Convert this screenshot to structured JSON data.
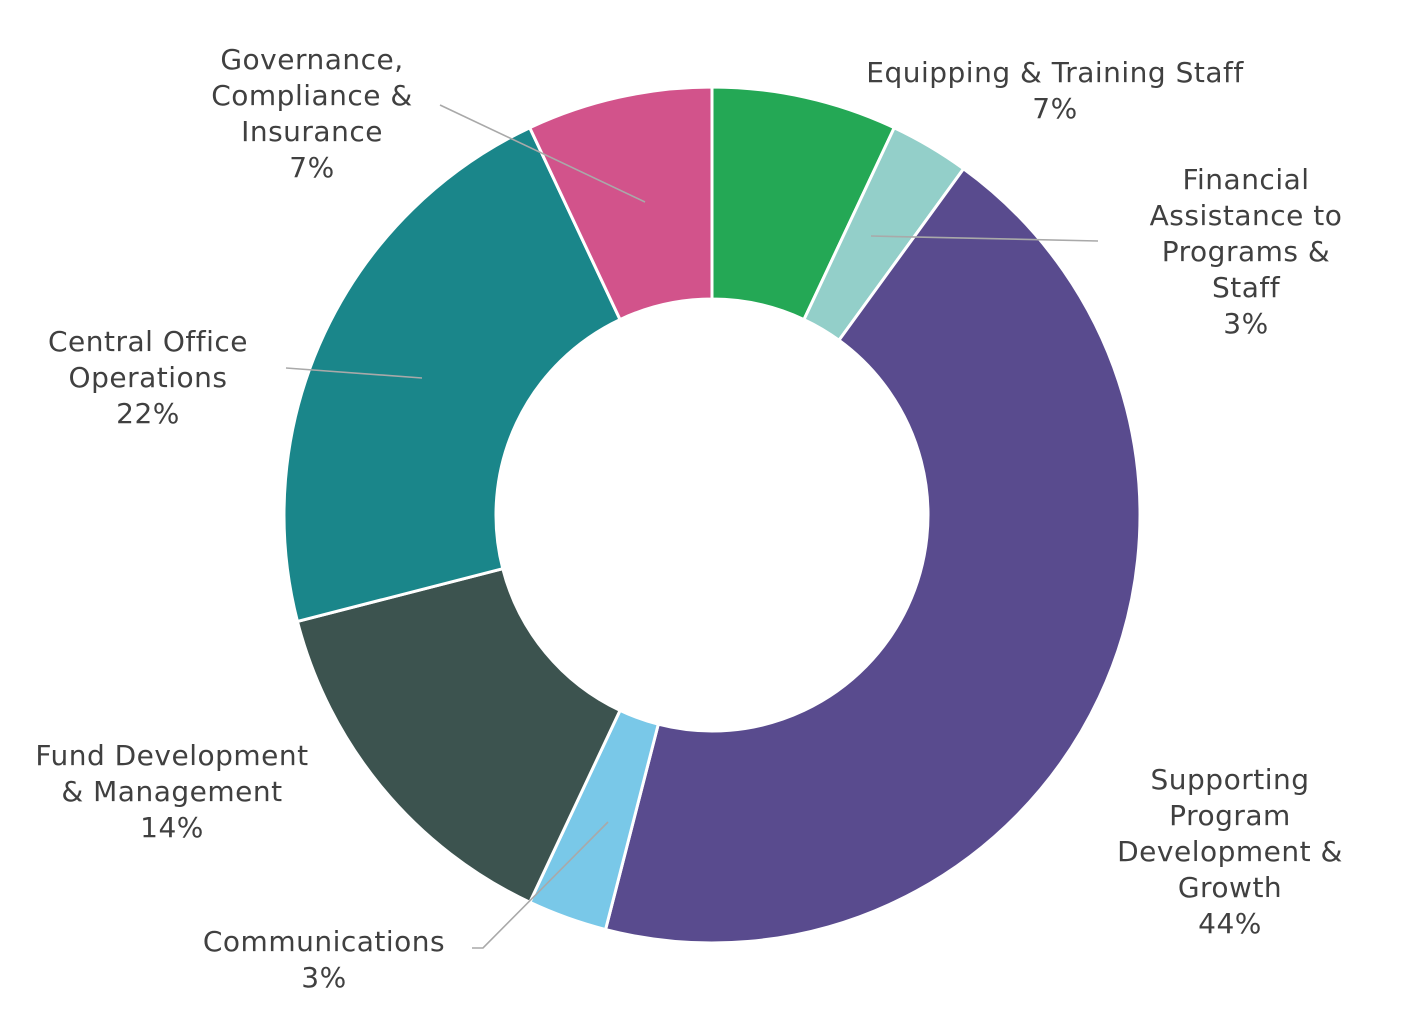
{
  "chart_data": {
    "type": "pie",
    "donut": true,
    "slices": [
      {
        "lines": [
          "Equipping & Training Staff"
        ],
        "value": 7,
        "value_label": "7%",
        "color": "#24a855"
      },
      {
        "lines": [
          "Financial",
          "Assistance to",
          "Programs &",
          "Staff"
        ],
        "value": 3,
        "value_label": "3%",
        "color": "#93cfc9"
      },
      {
        "lines": [
          "Supporting",
          "Program",
          "Development &",
          "Growth"
        ],
        "value": 44,
        "value_label": "44%",
        "color": "#594b8e"
      },
      {
        "lines": [
          "Communications"
        ],
        "value": 3,
        "value_label": "3%",
        "color": "#79c8e8"
      },
      {
        "lines": [
          "Fund Development",
          "& Management"
        ],
        "value": 14,
        "value_label": "14%",
        "color": "#3c534f"
      },
      {
        "lines": [
          "Central Office",
          "Operations"
        ],
        "value": 22,
        "value_label": "22%",
        "color": "#1a868a"
      },
      {
        "lines": [
          "Governance,",
          "Compliance &",
          "Insurance"
        ],
        "value": 7,
        "value_label": "7%",
        "color": "#d2538b"
      }
    ],
    "start": "top",
    "direction": "clockwise",
    "legend": "none"
  }
}
